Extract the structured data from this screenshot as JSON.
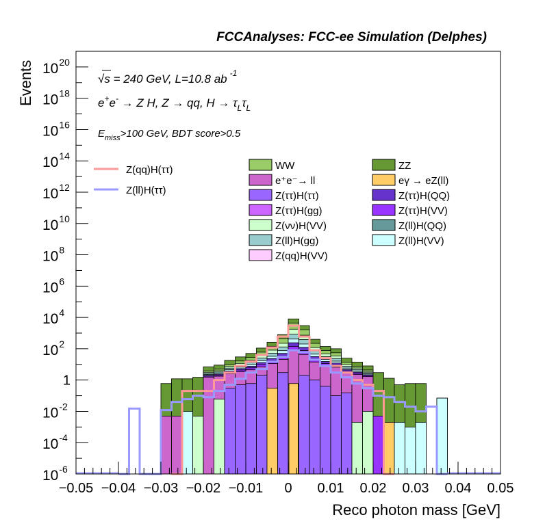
{
  "chart_data": {
    "type": "bar",
    "title": "FCCAnalyses: FCC-ee Simulation (Delphes)",
    "xlabel": "Reco photon mass [GeV]",
    "ylabel": "Events",
    "xlim": [
      -0.05,
      0.05
    ],
    "ylim_exponents": [
      -6,
      21
    ],
    "yscale": "log",
    "bin_width": 0.0025,
    "x_ticks": [
      "−0.05",
      "−0.04",
      "−0.03",
      "−0.02",
      "−0.01",
      "0",
      "0.01",
      "0.02",
      "0.03",
      "0.04",
      "0.05"
    ],
    "y_ticks": [
      {
        "base": "10",
        "exp": "20"
      },
      {
        "base": "10",
        "exp": "18"
      },
      {
        "base": "10",
        "exp": "16"
      },
      {
        "base": "10",
        "exp": "14"
      },
      {
        "base": "10",
        "exp": "12"
      },
      {
        "base": "10",
        "exp": "10"
      },
      {
        "base": "10",
        "exp": "8"
      },
      {
        "base": "10",
        "exp": "6"
      },
      {
        "base": "10",
        "exp": "4"
      },
      {
        "base": "10",
        "exp": "2"
      },
      {
        "base": "1",
        "exp": ""
      },
      {
        "base": "10",
        "exp": "-2"
      },
      {
        "base": "10",
        "exp": "-4"
      },
      {
        "base": "10",
        "exp": "-6"
      }
    ],
    "annotations": {
      "line1_sqrt": "√s",
      "line1_rest": " = 240 GeV, L=10.8 ab",
      "line1_sup": "-1",
      "line2_a": "e",
      "line2_sup1": "+",
      "line2_b": "e",
      "line2_sup2": "-",
      "line2_c": " → Z H, Z  → qq, H  → τ",
      "line2_sub1": "L",
      "line2_d": "τ",
      "line2_sub2": "L",
      "line3_a": "E",
      "line3_sub": "miss",
      "line3_b": ">100 GeV, BDT score>0.5"
    },
    "stack_bins": [
      {
        "x_low": -0.03,
        "y": 0.6
      },
      {
        "x_low": -0.0275,
        "y": 1.2
      },
      {
        "x_low": -0.025,
        "y": 1.2
      },
      {
        "x_low": -0.0225,
        "y": 1.5
      },
      {
        "x_low": -0.02,
        "y": 7
      },
      {
        "x_low": -0.0175,
        "y": 9
      },
      {
        "x_low": -0.015,
        "y": 18
      },
      {
        "x_low": -0.0125,
        "y": 30
      },
      {
        "x_low": -0.01,
        "y": 50
      },
      {
        "x_low": -0.0075,
        "y": 110
      },
      {
        "x_low": -0.005,
        "y": 260
      },
      {
        "x_low": -0.0025,
        "y": 800
      },
      {
        "x_low": 0,
        "y": 8000
      },
      {
        "x_low": 0.0025,
        "y": 3000
      },
      {
        "x_low": 0.005,
        "y": 400
      },
      {
        "x_low": 0.0075,
        "y": 140
      },
      {
        "x_low": 0.01,
        "y": 100
      },
      {
        "x_low": 0.0125,
        "y": 25
      },
      {
        "x_low": 0.015,
        "y": 14
      },
      {
        "x_low": 0.0175,
        "y": 8
      },
      {
        "x_low": 0.02,
        "y": 3
      },
      {
        "x_low": 0.0225,
        "y": 1.3
      },
      {
        "x_low": 0.025,
        "y": 0.5
      },
      {
        "x_low": 0.0275,
        "y": 0.6
      },
      {
        "x_low": 0.03,
        "y": 0.6
      },
      {
        "x_low": 0.035,
        "y": 0.07
      }
    ],
    "inner_bins": [
      {
        "x_low": -0.03,
        "y": 0.005,
        "color": "#cc66cc"
      },
      {
        "x_low": -0.0275,
        "y": 0.005,
        "color": "#cc66cc"
      },
      {
        "x_low": -0.025,
        "y": 0.01,
        "color": "#ccffff"
      },
      {
        "x_low": -0.0225,
        "y": 0.005,
        "color": "#ccffcc"
      },
      {
        "x_low": -0.02,
        "y": 0.2,
        "color": "#cc66cc"
      },
      {
        "x_low": -0.0175,
        "y": 0.06,
        "color": "#ccffcc"
      },
      {
        "x_low": -0.015,
        "y": 0.3,
        "color": "#9966ff"
      },
      {
        "x_low": -0.0125,
        "y": 0.5,
        "color": "#9966ff"
      },
      {
        "x_low": -0.01,
        "y": 0.6,
        "color": "#9966ff"
      },
      {
        "x_low": -0.0075,
        "y": 2,
        "color": "#9966ff"
      },
      {
        "x_low": -0.005,
        "y": 0.3,
        "color": "#ffcc66"
      },
      {
        "x_low": -0.0025,
        "y": 3,
        "color": "#9966ff"
      },
      {
        "x_low": 0,
        "y": 0.5,
        "color": "#ffcc66"
      },
      {
        "x_low": 0.0025,
        "y": 2,
        "color": "#9966ff"
      },
      {
        "x_low": 0.005,
        "y": 1,
        "color": "#9966ff"
      },
      {
        "x_low": 0.0075,
        "y": 0.4,
        "color": "#9966ff"
      },
      {
        "x_low": 0.01,
        "y": 0.1,
        "color": "#9966ff"
      },
      {
        "x_low": 0.0125,
        "y": 0.15,
        "color": "#9966ff"
      },
      {
        "x_low": 0.015,
        "y": 0.002,
        "color": "#ccffcc"
      },
      {
        "x_low": 0.0175,
        "y": 0.01,
        "color": "#ccffcc"
      },
      {
        "x_low": 0.02,
        "y": 0.005,
        "color": "#9933ff"
      },
      {
        "x_low": 0.0225,
        "y": 0.002,
        "color": "#ffcc66"
      },
      {
        "x_low": 0.025,
        "y": 0.002,
        "color": "#ccffff"
      },
      {
        "x_low": 0.0275,
        "y": 0.001,
        "color": "#ccffff"
      },
      {
        "x_low": 0.03,
        "y": 0.002,
        "color": "#ccffff"
      },
      {
        "x_low": 0.035,
        "y": 0.07,
        "color": "#ccffff"
      }
    ],
    "mid_layers": [
      {
        "color": "#ccffcc",
        "frac": 0.9
      },
      {
        "color": "#99cccc",
        "frac": 0.82
      },
      {
        "color": "#ccffff",
        "frac": 0.74
      },
      {
        "color": "#6633cc",
        "frac": 0.68
      },
      {
        "color": "#9933ff",
        "frac": 0.62
      },
      {
        "color": "#cc66cc",
        "frac": 0.55
      }
    ],
    "series": [
      {
        "name": "WW",
        "color": "#99cc66"
      },
      {
        "name": "ZZ",
        "color": "#669933"
      },
      {
        "name": "e⁺e⁻→ ll",
        "color": "#cc66cc"
      },
      {
        "name": "eγ → eZ(ll)",
        "color": "#ffcc66"
      },
      {
        "name": "Z(ττ)H(ττ)",
        "color": "#9966ff"
      },
      {
        "name": "Z(ττ)H(QQ)",
        "color": "#6633cc"
      },
      {
        "name": "Z(ττ)H(gg)",
        "color": "#cc66ff"
      },
      {
        "name": "Z(ττ)H(VV)",
        "color": "#9933ff"
      },
      {
        "name": "Z(νν)H(VV)",
        "color": "#ccffcc"
      },
      {
        "name": "Z(ll)H(QQ)",
        "color": "#669999"
      },
      {
        "name": "Z(ll)H(gg)",
        "color": "#99cccc"
      },
      {
        "name": "Z(ll)H(VV)",
        "color": "#ccffff"
      },
      {
        "name": "Z(qq)H(VV)",
        "color": "#ffccff"
      }
    ],
    "signals": [
      {
        "name": "Z(qq)H(ττ)",
        "color": "#ff9999",
        "bins": [
          {
            "x_low": -0.0275,
            "y": 1e-06
          },
          {
            "x_low": -0.025,
            "y": 0.2
          },
          {
            "x_low": -0.0225,
            "y": 0.2
          },
          {
            "x_low": -0.02,
            "y": 0.2
          },
          {
            "x_low": -0.0175,
            "y": 1
          },
          {
            "x_low": -0.015,
            "y": 3
          },
          {
            "x_low": -0.0125,
            "y": 8
          },
          {
            "x_low": -0.01,
            "y": 15
          },
          {
            "x_low": -0.0075,
            "y": 40
          },
          {
            "x_low": -0.005,
            "y": 120
          },
          {
            "x_low": -0.0025,
            "y": 600
          },
          {
            "x_low": 0,
            "y": 3000
          },
          {
            "x_low": 0.0025,
            "y": 600
          },
          {
            "x_low": 0.005,
            "y": 80
          },
          {
            "x_low": 0.0075,
            "y": 25
          },
          {
            "x_low": 0.01,
            "y": 8
          },
          {
            "x_low": 0.0125,
            "y": 3
          },
          {
            "x_low": 0.015,
            "y": 1
          },
          {
            "x_low": 0.0175,
            "y": 0.5
          },
          {
            "x_low": 0.02,
            "y": 0.2
          },
          {
            "x_low": 0.0225,
            "y": 1e-06
          }
        ]
      },
      {
        "name": "Z(ll)H(ττ)",
        "color": "#9999ff",
        "bins": [
          {
            "x_low": -0.04,
            "y": 1e-06
          },
          {
            "x_low": -0.0375,
            "y": 0.015
          },
          {
            "x_low": -0.035,
            "y": 1e-06
          },
          {
            "x_low": -0.0325,
            "y": 1e-06
          },
          {
            "x_low": -0.03,
            "y": 0.012
          },
          {
            "x_low": -0.0275,
            "y": 0.04
          },
          {
            "x_low": -0.025,
            "y": 0.06
          },
          {
            "x_low": -0.0225,
            "y": 0.1
          },
          {
            "x_low": -0.02,
            "y": 0.08
          },
          {
            "x_low": -0.0175,
            "y": 0.2
          },
          {
            "x_low": -0.015,
            "y": 0.5
          },
          {
            "x_low": -0.0125,
            "y": 1.2
          },
          {
            "x_low": -0.01,
            "y": 3
          },
          {
            "x_low": -0.0075,
            "y": 5
          },
          {
            "x_low": -0.005,
            "y": 15
          },
          {
            "x_low": -0.0025,
            "y": 30
          },
          {
            "x_low": 0,
            "y": 80
          },
          {
            "x_low": 0.0025,
            "y": 60
          },
          {
            "x_low": 0.005,
            "y": 20
          },
          {
            "x_low": 0.0075,
            "y": 8
          },
          {
            "x_low": 0.01,
            "y": 3
          },
          {
            "x_low": 0.0125,
            "y": 1.5
          },
          {
            "x_low": 0.015,
            "y": 0.6
          },
          {
            "x_low": 0.0175,
            "y": 0.3
          },
          {
            "x_low": 0.02,
            "y": 0.1
          },
          {
            "x_low": 0.0225,
            "y": 0.08
          },
          {
            "x_low": 0.025,
            "y": 0.04
          },
          {
            "x_low": 0.0275,
            "y": 0.02
          },
          {
            "x_low": 0.03,
            "y": 0.01
          },
          {
            "x_low": 0.0325,
            "y": 0.02
          },
          {
            "x_low": 0.035,
            "y": 1e-06
          }
        ]
      }
    ]
  }
}
